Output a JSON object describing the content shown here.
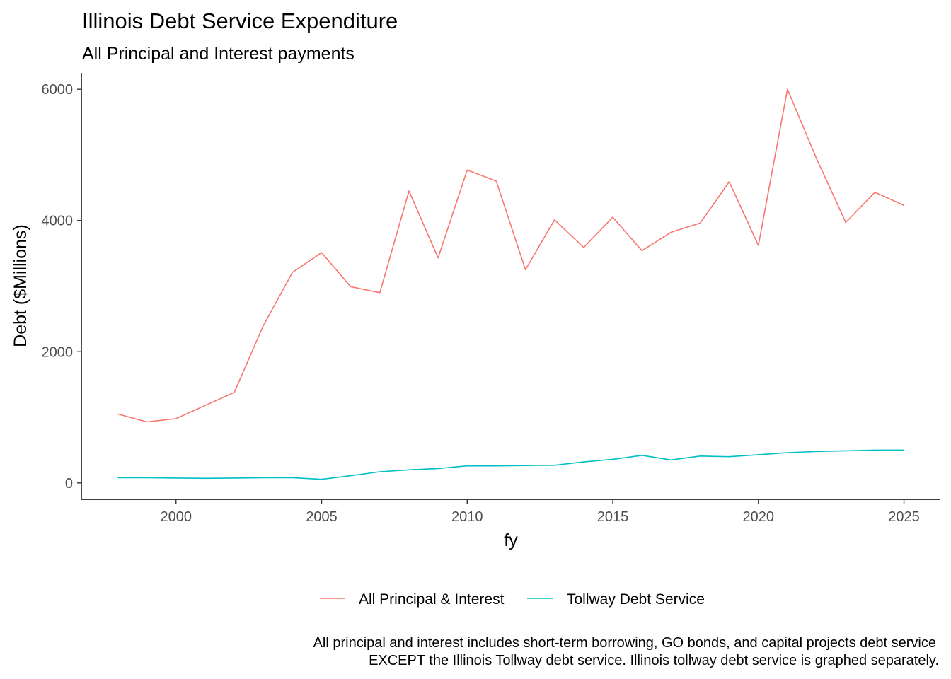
{
  "chart_data": {
    "type": "line",
    "title": "Illinois Debt Service Expenditure",
    "subtitle": "All Principal and Interest payments",
    "xlabel": "fy",
    "ylabel": "Debt ($Millions)",
    "xlim": [
      1996.75,
      2026.25
    ],
    "ylim": [
      -250,
      6250
    ],
    "xticks": [
      2000,
      2005,
      2010,
      2015,
      2020,
      2025
    ],
    "xtick_labels": [
      "2000",
      "2005",
      "2010",
      "2015",
      "2020",
      "2025"
    ],
    "yticks": [
      0,
      2000,
      4000,
      6000
    ],
    "ytick_labels": [
      "0",
      "2000",
      "4000",
      "6000"
    ],
    "grid": false,
    "legend_position": "bottom",
    "x": [
      1998,
      1999,
      2000,
      2001,
      2002,
      2003,
      2004,
      2005,
      2006,
      2007,
      2008,
      2009,
      2010,
      2011,
      2012,
      2013,
      2014,
      2015,
      2016,
      2017,
      2018,
      2019,
      2020,
      2021,
      2022,
      2023,
      2024,
      2025
    ],
    "series": [
      {
        "name": "All Principal & Interest",
        "color": "#F8766D",
        "values": [
          1050,
          930,
          980,
          1180,
          1380,
          2400,
          3210,
          3510,
          2990,
          2900,
          4450,
          3430,
          4770,
          4600,
          3250,
          4010,
          3590,
          4050,
          3540,
          3820,
          3960,
          4590,
          3620,
          6000,
          4940,
          3970,
          4430,
          4230
        ]
      },
      {
        "name": "Tollway Debt Service",
        "color": "#00BFC4",
        "values": [
          80,
          80,
          75,
          70,
          75,
          80,
          80,
          55,
          110,
          170,
          200,
          220,
          260,
          260,
          265,
          270,
          320,
          360,
          420,
          350,
          410,
          400,
          430,
          460,
          480,
          490,
          500,
          500
        ]
      }
    ],
    "caption": [
      "All principal and interest includes short-term borrowing, GO bonds, and capital projects debt service",
      "EXCEPT the Illinois Tollway debt service. Illinois tollway debt service is graphed separately."
    ]
  }
}
